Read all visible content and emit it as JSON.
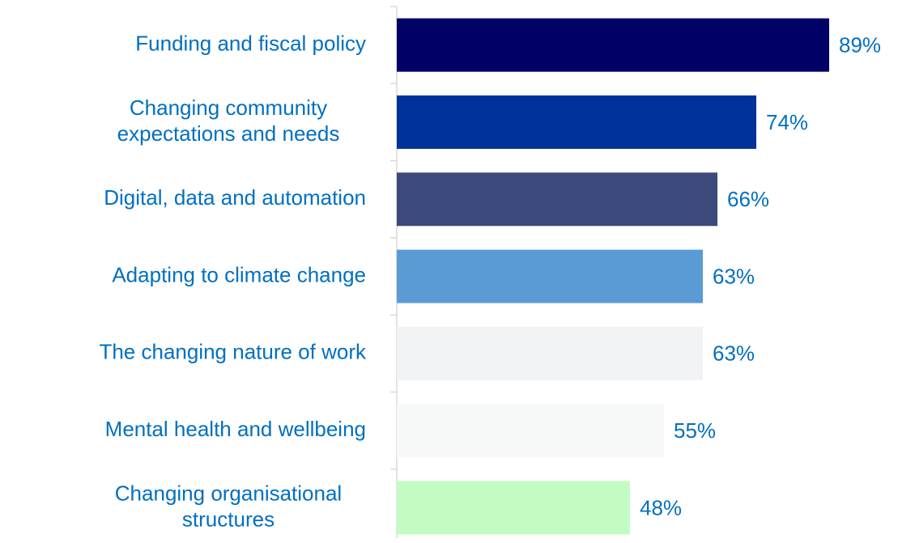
{
  "chart_data": {
    "type": "bar",
    "orientation": "horizontal",
    "categories": [
      "Funding and fiscal policy",
      "Changing community expectations and needs",
      "Digital, data and automation",
      "Adapting to climate change",
      "The changing nature of work",
      "Mental health and wellbeing",
      "Changing organisational structures"
    ],
    "values": [
      89,
      74,
      66,
      63,
      63,
      55,
      48
    ],
    "value_labels": [
      "89%",
      "74%",
      "66%",
      "63%",
      "63%",
      "55%",
      "48%"
    ],
    "colors": [
      "#000066",
      "#003399",
      "#3b4a7a",
      "#5b9bd5",
      "#f2f3f5",
      "#f7f8f8",
      "#c3fcc3"
    ]
  }
}
